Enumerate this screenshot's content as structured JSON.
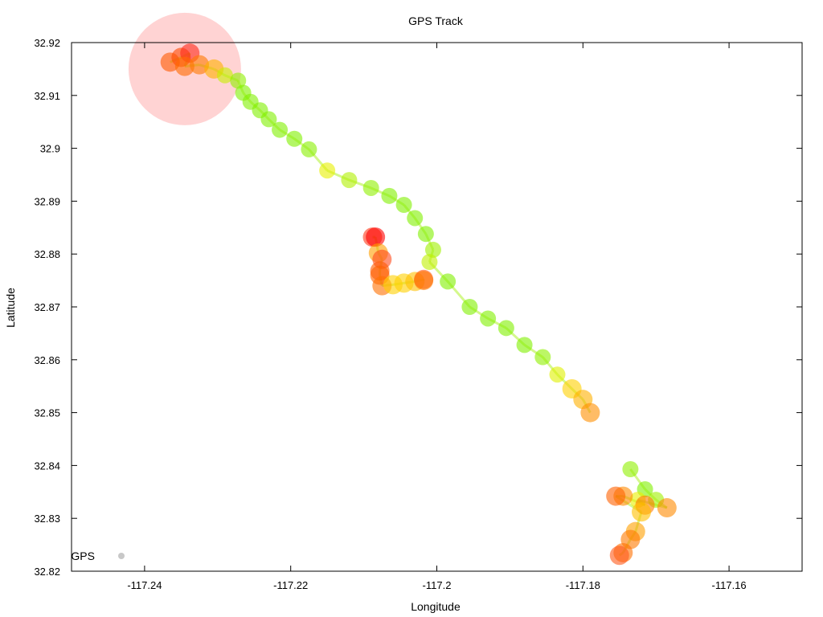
{
  "chart_data": {
    "type": "scatter",
    "title": "GPS Track",
    "xlabel": "Longitude",
    "ylabel": "Latitude",
    "xlim": [
      -117.25,
      -117.15
    ],
    "ylim": [
      32.82,
      32.92
    ],
    "x_ticks": [
      -117.24,
      -117.22,
      -117.2,
      -117.18,
      -117.16
    ],
    "x_tick_labels": [
      "-117.24",
      "-117.22",
      "-117.2",
      "-117.18",
      "-117.16"
    ],
    "y_ticks": [
      32.82,
      32.83,
      32.84,
      32.85,
      32.86,
      32.87,
      32.88,
      32.89,
      32.9,
      32.91,
      32.92
    ],
    "y_tick_labels": [
      "32.82",
      "32.83",
      "32.84",
      "32.85",
      "32.86",
      "32.87",
      "32.88",
      "32.89",
      "32.9",
      "32.91",
      "32.92"
    ],
    "grid": false,
    "legend_position": "bottom-left",
    "series": [
      {
        "name": "GPS",
        "legend_color": "#c8c8c8",
        "points": [
          {
            "x": -117.2365,
            "y": 32.9163,
            "c": "#ff5a00"
          },
          {
            "x": -117.235,
            "y": 32.9172,
            "c": "#ff4a00"
          },
          {
            "x": -117.2338,
            "y": 32.918,
            "c": "#ff2a1a"
          },
          {
            "x": -117.2345,
            "y": 32.9155,
            "c": "#ff6a00"
          },
          {
            "x": -117.2325,
            "y": 32.9158,
            "c": "#ff7a00"
          },
          {
            "x": -117.2305,
            "y": 32.915,
            "c": "#ffb000"
          },
          {
            "x": -117.229,
            "y": 32.9138,
            "c": "#c8f000"
          },
          {
            "x": -117.2272,
            "y": 32.9128,
            "c": "#90f000"
          },
          {
            "x": -117.2265,
            "y": 32.9105,
            "c": "#80f000"
          },
          {
            "x": -117.2255,
            "y": 32.9088,
            "c": "#80f000"
          },
          {
            "x": -117.2242,
            "y": 32.9072,
            "c": "#80f000"
          },
          {
            "x": -117.223,
            "y": 32.9055,
            "c": "#80f000"
          },
          {
            "x": -117.2215,
            "y": 32.9035,
            "c": "#80f000"
          },
          {
            "x": -117.2195,
            "y": 32.9018,
            "c": "#80f000"
          },
          {
            "x": -117.2175,
            "y": 32.8998,
            "c": "#88f000"
          },
          {
            "x": -117.215,
            "y": 32.8958,
            "c": "#e8f000"
          },
          {
            "x": -117.212,
            "y": 32.894,
            "c": "#b0f000"
          },
          {
            "x": -117.209,
            "y": 32.8925,
            "c": "#90f000"
          },
          {
            "x": -117.2065,
            "y": 32.891,
            "c": "#80f000"
          },
          {
            "x": -117.2045,
            "y": 32.8893,
            "c": "#80f000"
          },
          {
            "x": -117.203,
            "y": 32.8868,
            "c": "#80f000"
          },
          {
            "x": -117.2015,
            "y": 32.8838,
            "c": "#80f000"
          },
          {
            "x": -117.2005,
            "y": 32.8808,
            "c": "#a0f000"
          },
          {
            "x": -117.201,
            "y": 32.8785,
            "c": "#c0f000"
          },
          {
            "x": -117.1985,
            "y": 32.8748,
            "c": "#80f000"
          },
          {
            "x": -117.1955,
            "y": 32.87,
            "c": "#80f000"
          },
          {
            "x": -117.193,
            "y": 32.8678,
            "c": "#80f000"
          },
          {
            "x": -117.1905,
            "y": 32.866,
            "c": "#80f000"
          },
          {
            "x": -117.188,
            "y": 32.8628,
            "c": "#80f000"
          },
          {
            "x": -117.1855,
            "y": 32.8605,
            "c": "#90f000"
          },
          {
            "x": -117.1835,
            "y": 32.8572,
            "c": "#e0f000"
          },
          {
            "x": -117.1815,
            "y": 32.8545,
            "c": "#ffd000"
          },
          {
            "x": -117.18,
            "y": 32.8525,
            "c": "#ffb000"
          },
          {
            "x": -117.179,
            "y": 32.85,
            "c": "#ff9000"
          },
          {
            "x": -117.1735,
            "y": 32.8393,
            "c": "#90f000"
          },
          {
            "x": -117.1715,
            "y": 32.8355,
            "c": "#80f000"
          },
          {
            "x": -117.17,
            "y": 32.8335,
            "c": "#a0f000"
          },
          {
            "x": -117.1685,
            "y": 32.832,
            "c": "#ff8a00"
          },
          {
            "x": -117.1725,
            "y": 32.8335,
            "c": "#e8f000"
          },
          {
            "x": -117.1715,
            "y": 32.8325,
            "c": "#ff7a00"
          },
          {
            "x": -117.1745,
            "y": 32.8342,
            "c": "#ff8a00"
          },
          {
            "x": -117.1755,
            "y": 32.8342,
            "c": "#ff6000"
          },
          {
            "x": -117.172,
            "y": 32.8312,
            "c": "#ffc000"
          },
          {
            "x": -117.1728,
            "y": 32.8275,
            "c": "#ffa000"
          },
          {
            "x": -117.1735,
            "y": 32.826,
            "c": "#ff7a00"
          },
          {
            "x": -117.1745,
            "y": 32.8235,
            "c": "#ff7000"
          },
          {
            "x": -117.175,
            "y": 32.823,
            "c": "#ff5a1a"
          },
          {
            "x": -117.2088,
            "y": 32.8832,
            "c": "#ff3a1a"
          },
          {
            "x": -117.2084,
            "y": 32.8832,
            "c": "#ff0000"
          },
          {
            "x": -117.208,
            "y": 32.8802,
            "c": "#ffa000"
          },
          {
            "x": -117.2075,
            "y": 32.879,
            "c": "#ff4a1a"
          },
          {
            "x": -117.2078,
            "y": 32.8768,
            "c": "#ff5a00"
          },
          {
            "x": -117.2078,
            "y": 32.876,
            "c": "#ff6000"
          },
          {
            "x": -117.2075,
            "y": 32.874,
            "c": "#ff7000"
          },
          {
            "x": -117.206,
            "y": 32.8742,
            "c": "#ffd000"
          },
          {
            "x": -117.2045,
            "y": 32.8745,
            "c": "#ffd000"
          },
          {
            "x": -117.203,
            "y": 32.8748,
            "c": "#ffc000"
          },
          {
            "x": -117.2018,
            "y": 32.8752,
            "c": "#ff5a1a"
          },
          {
            "x": -117.2018,
            "y": 32.875,
            "c": "#ff7a00"
          }
        ]
      }
    ],
    "highlight_circle": {
      "x": -117.2345,
      "y": 32.915,
      "color": "#ff8080"
    }
  }
}
